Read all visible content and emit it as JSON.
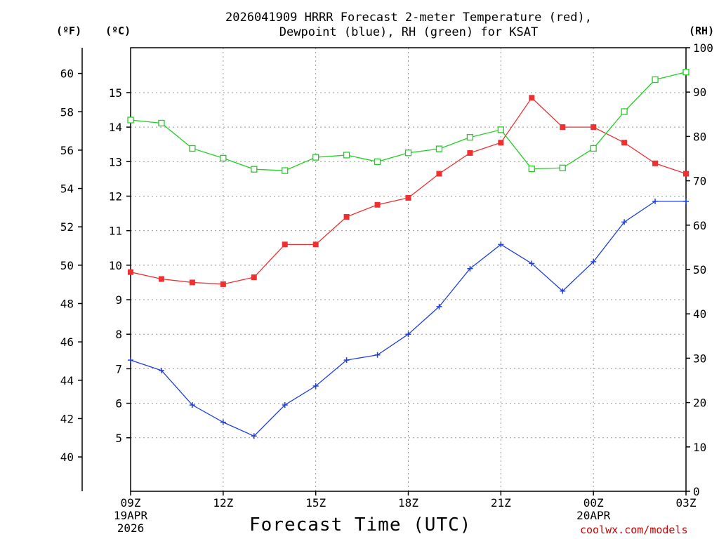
{
  "title_line1": "2026041909 HRRR Forecast 2-meter Temperature (red),",
  "title_line2": "Dewpoint (blue), RH (green) for KSAT",
  "units": {
    "fahrenheit": "(ºF)",
    "celsius": "(ºC)",
    "rh": "(RH)"
  },
  "xlabel": "Forecast Time (UTC)",
  "credit": "coolwx.com/models",
  "colors": {
    "temp": "#ee3030",
    "dewpoint": "#2040e0",
    "rh": "#20d020",
    "grid": "#999999",
    "axis": "#000000"
  },
  "chart_data": {
    "type": "line",
    "title": "2026041909 HRRR Forecast 2-meter Temperature (red), Dewpoint (blue), RH (green) for KSAT",
    "xlabel": "Forecast Time (UTC)",
    "x_hours": [
      0,
      1,
      2,
      3,
      4,
      5,
      6,
      7,
      8,
      9,
      10,
      11,
      12,
      13,
      14,
      15,
      16,
      17,
      18
    ],
    "xlim": [
      0,
      18
    ],
    "x_ticks": [
      {
        "hour": 0,
        "lines": [
          "09Z",
          "19APR",
          "2026"
        ]
      },
      {
        "hour": 3,
        "lines": [
          "12Z"
        ]
      },
      {
        "hour": 6,
        "lines": [
          "15Z"
        ]
      },
      {
        "hour": 9,
        "lines": [
          "18Z"
        ]
      },
      {
        "hour": 12,
        "lines": [
          "21Z"
        ]
      },
      {
        "hour": 15,
        "lines": [
          "00Z",
          "20APR"
        ]
      },
      {
        "hour": 18,
        "lines": [
          "03Z"
        ]
      }
    ],
    "axes": {
      "fahrenheit": {
        "ticks": [
          40,
          42,
          44,
          46,
          48,
          50,
          52,
          54,
          56,
          58,
          60
        ],
        "ylim_celsius": [
          3.45,
          16.3
        ]
      },
      "celsius": {
        "ticks": [
          5,
          6,
          7,
          8,
          9,
          10,
          11,
          12,
          13,
          14,
          15
        ],
        "ylim": [
          3.45,
          16.3
        ]
      },
      "rh": {
        "ticks": [
          0,
          10,
          20,
          30,
          40,
          50,
          60,
          70,
          80,
          90,
          100
        ],
        "ylim": [
          0,
          100
        ]
      }
    },
    "series": [
      {
        "name": "Temperature",
        "axis": "celsius",
        "marker": "filled-square",
        "values": [
          9.8,
          9.6,
          9.5,
          9.45,
          9.65,
          10.6,
          10.6,
          11.4,
          11.75,
          11.95,
          12.65,
          13.25,
          13.55,
          14.85,
          14.0,
          14.0,
          13.55,
          12.95,
          12.65
        ]
      },
      {
        "name": "Dewpoint",
        "axis": "celsius",
        "marker": "plus",
        "values": [
          7.25,
          6.95,
          5.95,
          5.45,
          5.05,
          5.95,
          6.5,
          7.25,
          7.4,
          8.0,
          8.8,
          9.9,
          10.6,
          10.05,
          9.25,
          10.1,
          11.25,
          11.85,
          11.85
        ]
      },
      {
        "name": "RH",
        "axis": "rh",
        "marker": "open-square",
        "values": [
          83.7,
          83.0,
          77.3,
          75.1,
          72.6,
          72.3,
          75.3,
          75.8,
          74.3,
          76.3,
          77.2,
          79.8,
          81.5,
          72.7,
          72.9,
          77.3,
          85.6,
          92.8,
          94.5
        ]
      }
    ]
  }
}
